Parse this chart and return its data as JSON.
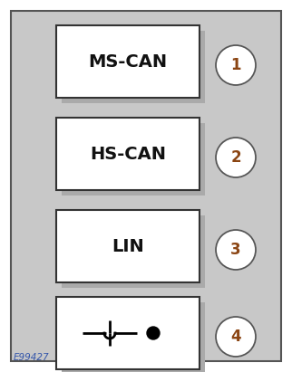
{
  "bg_outer": "#ffffff",
  "bg_panel": "#c8c8c8",
  "panel_border_color": "#555555",
  "box_bg": "#ffffff",
  "box_border_color": "#333333",
  "shadow_color": "#aaaaaa",
  "circle_bg": "#ffffff",
  "circle_border_color": "#555555",
  "number_color": "#8B4513",
  "label_color": "#111111",
  "watermark_color": "#3355aa",
  "labels": [
    "MS-CAN",
    "HS-CAN",
    "LIN",
    ""
  ],
  "numbers": [
    "1",
    "2",
    "3",
    "4"
  ],
  "watermark": "E99427",
  "fig_w": 3.22,
  "fig_h": 4.11,
  "dpi": 100
}
